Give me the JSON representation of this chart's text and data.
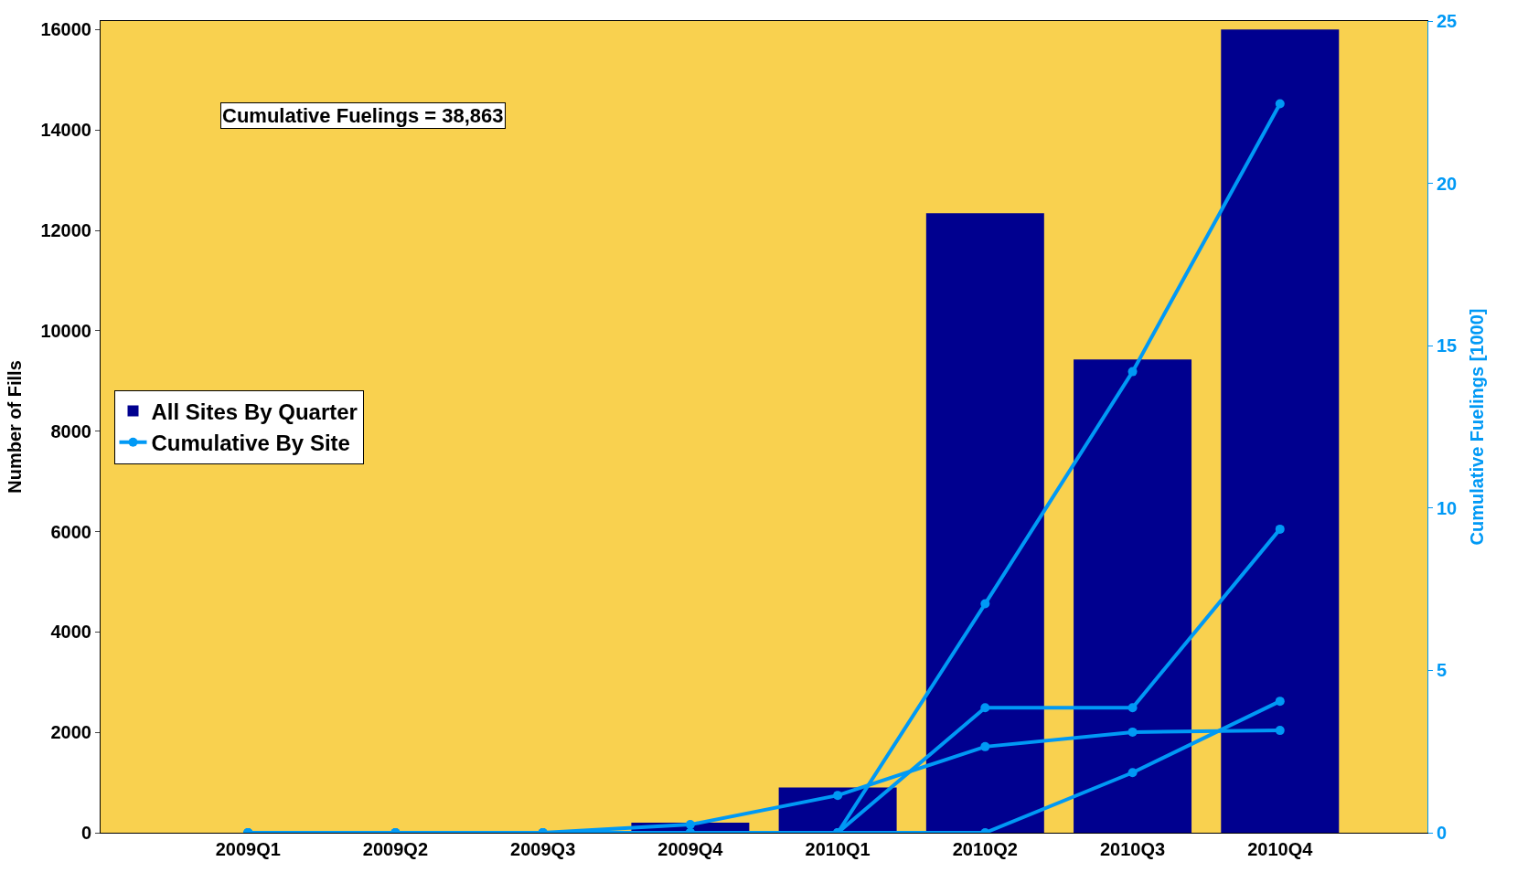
{
  "chart_data": {
    "type": "bar",
    "categories": [
      "2009Q1",
      "2009Q2",
      "2009Q3",
      "2009Q4",
      "2010Q1",
      "2010Q2",
      "2010Q3",
      "2010Q4"
    ],
    "series": [
      {
        "name": "All Sites By Quarter",
        "color": "#00008f",
        "values": [
          0,
          0,
          0,
          200,
          900,
          12340,
          9430,
          16000
        ]
      },
      {
        "name": "Cumulative By Site",
        "type": "line",
        "axis": "y2",
        "color": "#0099f5",
        "values": [
          0,
          0,
          0,
          0,
          0,
          7.05,
          14.2,
          22.45
        ]
      },
      {
        "type": "line",
        "axis": "y2",
        "color": "#0099f5",
        "values": [
          0,
          0,
          0,
          0,
          0,
          3.85,
          3.85,
          9.35
        ]
      },
      {
        "type": "line",
        "axis": "y2",
        "color": "#0099f5",
        "values": [
          0,
          0,
          0,
          0,
          0,
          0,
          1.85,
          4.05
        ]
      },
      {
        "type": "line",
        "axis": "y2",
        "color": "#0099f5",
        "values": [
          0,
          0,
          0,
          0.25,
          1.15,
          2.65,
          3.1,
          3.15
        ]
      }
    ],
    "ylabel": "Number of Fills",
    "y2label": "Cumulative Fuelings [1000]",
    "ylim": [
      0,
      16170
    ],
    "yticks": [
      0,
      2000,
      4000,
      6000,
      8000,
      10000,
      12000,
      14000,
      16000
    ],
    "y2lim": [
      0,
      25
    ],
    "y2ticks": [
      0,
      5,
      10,
      15,
      20,
      25
    ],
    "annotations": [
      "Cumulative Fuelings = 38,863"
    ],
    "legend": "left",
    "grid": false,
    "marker": "circle",
    "line_style": "solid"
  }
}
